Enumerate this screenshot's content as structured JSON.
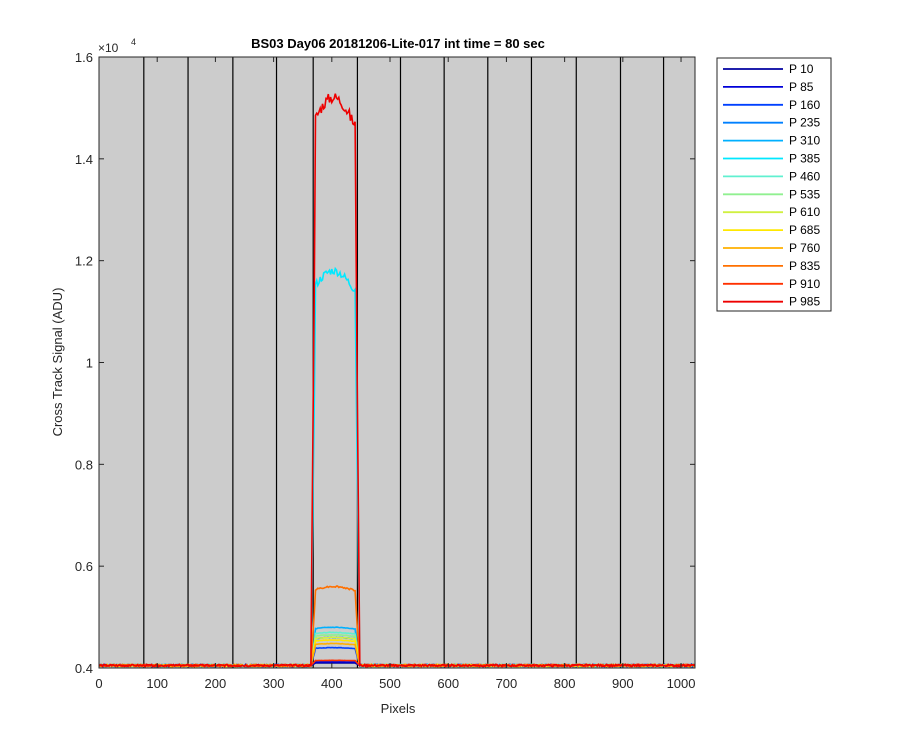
{
  "chart_data": {
    "type": "line",
    "title": "BS03 Day06 20181206-Lite-017 int time = 80 sec",
    "xlabel": "Pixels",
    "ylabel": "Cross Track Signal (ADU)",
    "y_exponent_base": "×10",
    "y_exponent_power": "4",
    "xlim": [
      0,
      1024
    ],
    "ylim": [
      0.4,
      1.6
    ],
    "x_ticks": [
      0,
      100,
      200,
      300,
      400,
      500,
      600,
      700,
      800,
      900,
      1000
    ],
    "x_tick_labels": [
      "0",
      "100",
      "200",
      "300",
      "400",
      "500",
      "600",
      "700",
      "800",
      "900",
      "1000"
    ],
    "y_ticks": [
      0.4,
      0.6,
      0.8,
      1.0,
      1.2,
      1.4,
      1.6
    ],
    "y_tick_labels": [
      "0.4",
      "0.6",
      "0.8",
      "1",
      "1.2",
      "1.4",
      "1.6"
    ],
    "plot_background": "#cccccc",
    "grid": false,
    "legend_position": "outside-top-right",
    "vertical_lines_x": [
      77,
      153,
      230,
      305,
      368,
      444,
      518,
      593,
      668,
      743,
      820,
      896,
      970
    ],
    "peak_x_range": [
      368,
      444
    ],
    "baseline": 0.405,
    "series": [
      {
        "name": "P 10",
        "color": "#0000a0",
        "peak": 0.41
      },
      {
        "name": "P 85",
        "color": "#0000d8",
        "peak": 0.412
      },
      {
        "name": "P 160",
        "color": "#0040ff",
        "peak": 0.44
      },
      {
        "name": "P 235",
        "color": "#0080ff",
        "peak": 0.46
      },
      {
        "name": "P 310",
        "color": "#00b0ff",
        "peak": 0.48
      },
      {
        "name": "P 385",
        "color": "#00e8ff",
        "peak": 1.18
      },
      {
        "name": "P 460",
        "color": "#60f0d0",
        "peak": 0.47
      },
      {
        "name": "P 535",
        "color": "#90f090",
        "peak": 0.465
      },
      {
        "name": "P 610",
        "color": "#d0f040",
        "peak": 0.46
      },
      {
        "name": "P 685",
        "color": "#ffe800",
        "peak": 0.455
      },
      {
        "name": "P 760",
        "color": "#ffb000",
        "peak": 0.448
      },
      {
        "name": "P 835",
        "color": "#ff7000",
        "peak": 0.56
      },
      {
        "name": "P 910",
        "color": "#ff3000",
        "peak": 0.415
      },
      {
        "name": "P 985",
        "color": "#ee0000",
        "peak": 1.52
      }
    ]
  }
}
